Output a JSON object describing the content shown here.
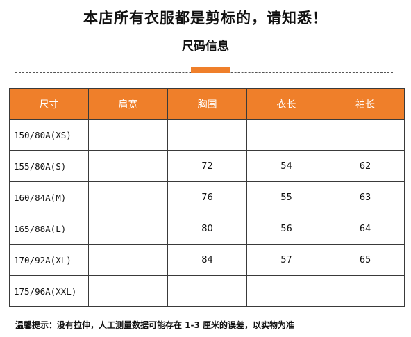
{
  "headline": "本店所有衣服都是剪标的，请知悉！",
  "subtitle": "尺码信息",
  "table": {
    "headers": [
      "尺寸",
      "肩宽",
      "胸围",
      "衣长",
      "袖长"
    ],
    "rows": [
      [
        "150/80A(XS)",
        "",
        "",
        "",
        ""
      ],
      [
        "155/80A(S)",
        "",
        "72",
        "54",
        "62"
      ],
      [
        "160/84A(M)",
        "",
        "76",
        "55",
        "63"
      ],
      [
        "165/88A(L)",
        "",
        "80",
        "56",
        "64"
      ],
      [
        "170/92A(XL)",
        "",
        "84",
        "57",
        "65"
      ],
      [
        "175/96A(XXL)",
        "",
        "",
        "",
        ""
      ]
    ]
  },
  "notice": "温馨提示：没有拉伸，人工测量数据可能存在 1-3 厘米的误差，以实物为准",
  "colors": {
    "accent": "#ef7f2a",
    "header_text": "#ffffff",
    "border": "#3a3a3a"
  }
}
